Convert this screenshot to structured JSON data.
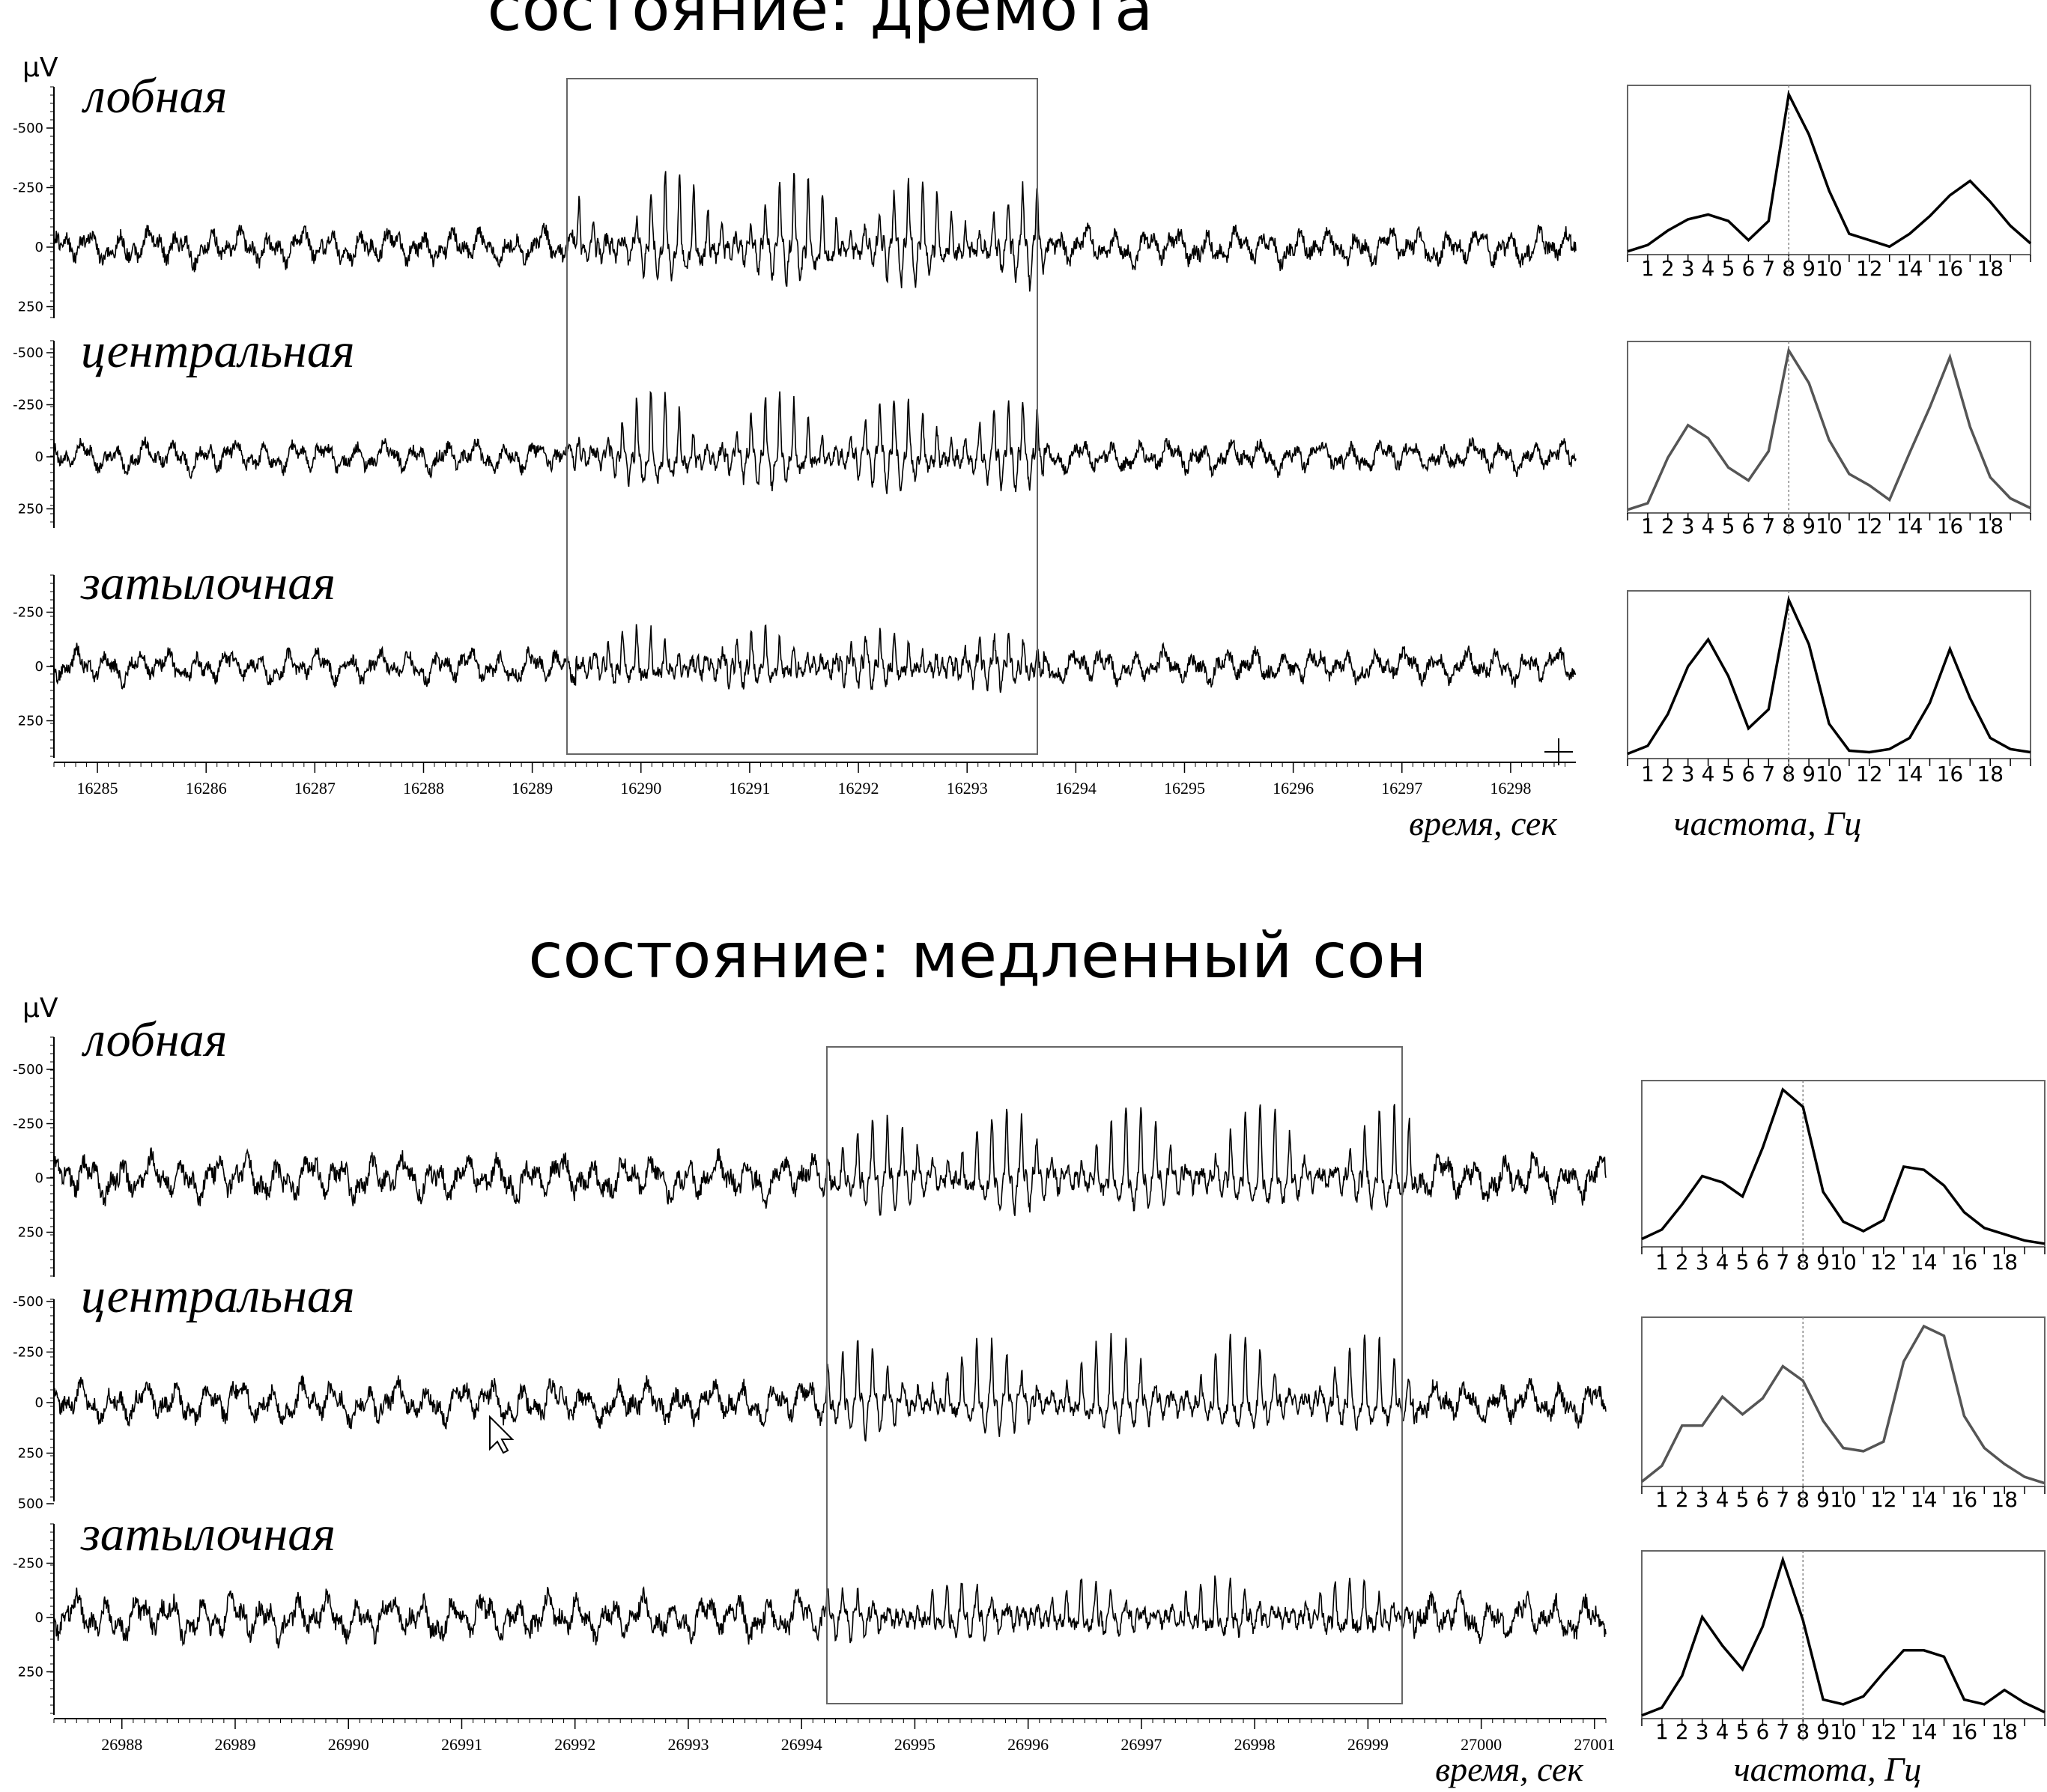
{
  "panels": [
    {
      "title": "состояние: дремота",
      "y_unit": "µV",
      "x_caption": "время, сек",
      "freq_caption": "частота, Гц",
      "time_range": [
        16284.6,
        16298.6
      ],
      "time_ticks": [
        16285,
        16286,
        16287,
        16288,
        16289,
        16290,
        16291,
        16292,
        16293,
        16294,
        16295,
        16296,
        16297,
        16298
      ],
      "highlight_window": [
        16289.4,
        16293.7
      ],
      "channels": [
        {
          "name": "лобная",
          "y_ticks": [
            "-500",
            "-250",
            "0",
            "250"
          ],
          "y_values": [
            -500,
            -250,
            0,
            250
          ],
          "y_range": [
            -760,
            300
          ]
        },
        {
          "name": "центральная",
          "y_ticks": [
            "-500",
            "-250",
            "0",
            "250"
          ],
          "y_values": [
            -500,
            -250,
            0,
            250
          ],
          "y_range": [
            -640,
            450
          ]
        },
        {
          "name": "затылочная",
          "y_ticks": [
            "-250",
            "0",
            "250"
          ],
          "y_values": [
            -250,
            0,
            250
          ],
          "y_range": [
            -420,
            460
          ]
        }
      ]
    },
    {
      "title": "состояние: медленный сон",
      "y_unit": "µV",
      "x_caption": "время, сек",
      "freq_caption": "частота, Гц",
      "time_range": [
        26987.4,
        27001.1
      ],
      "time_ticks": [
        26988,
        26989,
        26990,
        26991,
        26992,
        26993,
        26994,
        26995,
        26996,
        26997,
        26998,
        26999,
        27000,
        27001
      ],
      "highlight_window": [
        26994.2,
        26999.4
      ],
      "channels": [
        {
          "name": "лобная",
          "y_ticks": [
            "-500",
            "-250",
            "0",
            "250"
          ],
          "y_values": [
            -500,
            -250,
            0,
            250
          ],
          "y_range": [
            -740,
            480
          ]
        },
        {
          "name": "центральная",
          "y_ticks": [
            "-500",
            "-250",
            "0",
            "250",
            "500"
          ],
          "y_values": [
            -500,
            -250,
            0,
            250,
            500
          ],
          "y_range": [
            -520,
            500
          ]
        },
        {
          "name": "затылочная",
          "y_ticks": [
            "-250",
            "0",
            "250"
          ],
          "y_values": [
            -250,
            0,
            250
          ],
          "y_range": [
            -460,
            460
          ]
        }
      ]
    }
  ],
  "chart_data": [
    {
      "type": "line",
      "title": "состояние: дремота",
      "xlabel": "частота, Гц",
      "x_tick_labels": [
        "1",
        "2",
        "3",
        "4",
        "5",
        "6",
        "7",
        "8",
        "9",
        "10",
        "12",
        "14",
        "16",
        "18"
      ],
      "x": [
        0,
        1,
        2,
        3,
        4,
        5,
        6,
        7,
        8,
        9,
        10,
        11,
        12,
        13,
        14,
        15,
        16,
        17,
        18,
        19,
        20
      ],
      "marker_x": 8,
      "series": [
        {
          "name": "лобная",
          "color": "#000000",
          "values": [
            0.02,
            0.06,
            0.15,
            0.22,
            0.25,
            0.21,
            0.09,
            0.21,
            1.0,
            0.75,
            0.4,
            0.13,
            0.09,
            0.05,
            0.13,
            0.24,
            0.37,
            0.46,
            0.33,
            0.18,
            0.07
          ]
        },
        {
          "name": "центральная",
          "color": "#555555",
          "values": [
            0.02,
            0.06,
            0.34,
            0.54,
            0.46,
            0.28,
            0.2,
            0.38,
            1.0,
            0.8,
            0.45,
            0.24,
            0.17,
            0.08,
            0.37,
            0.65,
            0.96,
            0.53,
            0.22,
            0.09,
            0.03
          ]
        },
        {
          "name": "затылочная",
          "color": "#000000",
          "values": [
            0.03,
            0.08,
            0.28,
            0.58,
            0.75,
            0.52,
            0.19,
            0.31,
            1.0,
            0.72,
            0.22,
            0.05,
            0.04,
            0.06,
            0.13,
            0.35,
            0.69,
            0.38,
            0.13,
            0.06,
            0.04
          ]
        }
      ]
    },
    {
      "type": "line",
      "title": "состояние: медленный сон",
      "xlabel": "частота, Гц",
      "x_tick_labels": [
        "1",
        "2",
        "3",
        "4",
        "5",
        "6",
        "7",
        "8",
        "9",
        "10",
        "12",
        "14",
        "16",
        "18"
      ],
      "x": [
        0,
        1,
        2,
        3,
        4,
        5,
        6,
        7,
        8,
        9,
        10,
        11,
        12,
        13,
        14,
        15,
        16,
        17,
        18,
        19,
        20
      ],
      "marker_x": 8,
      "series": [
        {
          "name": "лобная",
          "color": "#000000",
          "values": [
            0.05,
            0.11,
            0.27,
            0.45,
            0.41,
            0.32,
            0.63,
            1.0,
            0.89,
            0.35,
            0.16,
            0.1,
            0.17,
            0.51,
            0.49,
            0.39,
            0.22,
            0.12,
            0.08,
            0.04,
            0.02
          ]
        },
        {
          "name": "центральная",
          "color": "#555555",
          "values": [
            0.03,
            0.13,
            0.38,
            0.38,
            0.56,
            0.45,
            0.55,
            0.75,
            0.66,
            0.41,
            0.24,
            0.22,
            0.28,
            0.78,
            1.0,
            0.94,
            0.44,
            0.24,
            0.14,
            0.06,
            0.02
          ]
        },
        {
          "name": "затылочная",
          "color": "#000000",
          "values": [
            0.02,
            0.07,
            0.27,
            0.64,
            0.46,
            0.31,
            0.58,
            1.0,
            0.62,
            0.12,
            0.09,
            0.14,
            0.29,
            0.43,
            0.43,
            0.39,
            0.12,
            0.09,
            0.18,
            0.1,
            0.04
          ]
        }
      ]
    }
  ]
}
